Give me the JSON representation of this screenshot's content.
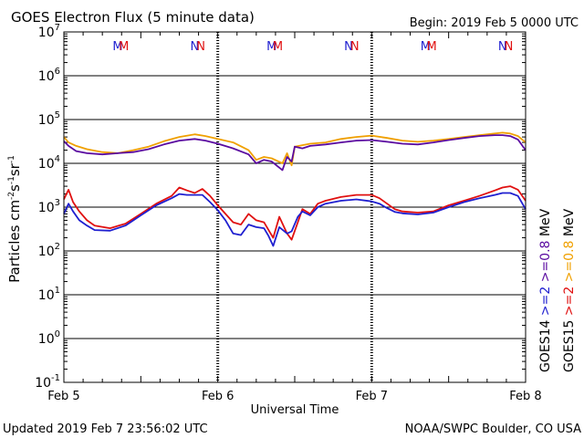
{
  "header": {
    "title": "GOES Electron Flux (5 minute data)",
    "begin": "Begin: 2019 Feb 5 0000 UTC"
  },
  "footer": {
    "updated": "Updated 2019 Feb  7 23:56:02 UTC",
    "credit": "NOAA/SWPC Boulder, CO USA"
  },
  "colors": {
    "goes14_2mev": "#1f1fd0",
    "goes15_2mev": "#e01010",
    "goes14_08mev": "#5a0aa0",
    "goes15_08mev": "#f0a000",
    "axis": "#000000"
  },
  "chart_data": {
    "type": "line",
    "title": "GOES Electron Flux (5 minute data)",
    "xlabel": "Universal Time",
    "ylabel": "Particles cm-2s-1sr-1",
    "ylabel_parts": {
      "base": "Particles cm",
      "exp1": "-2",
      "mid": "s",
      "exp2": "-1",
      "end": "sr",
      "exp3": "-1"
    },
    "y_scale": "log",
    "ylim_exp": [
      -1,
      7
    ],
    "y_ticks": [
      {
        "mant": "10",
        "exp": "7"
      },
      {
        "mant": "10",
        "exp": "6"
      },
      {
        "mant": "10",
        "exp": "5"
      },
      {
        "mant": "10",
        "exp": "4"
      },
      {
        "mant": "10",
        "exp": "3"
      },
      {
        "mant": "10",
        "exp": "2"
      },
      {
        "mant": "10",
        "exp": "1"
      },
      {
        "mant": "10",
        "exp": "0"
      },
      {
        "mant": "10",
        "exp": "-1"
      }
    ],
    "x_ticks": [
      "Feb 5",
      "Feb 6",
      "Feb 7",
      "Feb 8"
    ],
    "xlim_days": [
      0,
      3
    ],
    "threshold": 1000,
    "grid": true,
    "markers": [
      {
        "text": "M",
        "day": 0.35,
        "series": "GOES14"
      },
      {
        "text": "M",
        "day": 0.39,
        "series": "GOES15"
      },
      {
        "text": "N",
        "day": 0.85,
        "series": "GOES14"
      },
      {
        "text": "N",
        "day": 0.89,
        "series": "GOES15"
      },
      {
        "text": "M",
        "day": 1.35,
        "series": "GOES14"
      },
      {
        "text": "M",
        "day": 1.39,
        "series": "GOES15"
      },
      {
        "text": "N",
        "day": 1.85,
        "series": "GOES14"
      },
      {
        "text": "N",
        "day": 1.89,
        "series": "GOES15"
      },
      {
        "text": "M",
        "day": 2.35,
        "series": "GOES14"
      },
      {
        "text": "M",
        "day": 2.39,
        "series": "GOES15"
      },
      {
        "text": "N",
        "day": 2.85,
        "series": "GOES14"
      },
      {
        "text": "N",
        "day": 2.89,
        "series": "GOES15"
      }
    ],
    "legend": [
      {
        "sat": "GOES14",
        "energy": ">=2",
        "energy2": ">=0.8",
        "unit": "MeV",
        "color14": "#1f1fd0",
        "color08": "#5a0aa0"
      },
      {
        "sat": "GOES15",
        "energy": ">=2",
        "energy2": ">=0.8",
        "unit": "MeV",
        "color14": "#e01010",
        "color08": "#f0a000"
      }
    ],
    "series": [
      {
        "name": "GOES15 >=0.8 MeV",
        "color": "#f0a000",
        "x": [
          0,
          0.03,
          0.08,
          0.15,
          0.25,
          0.35,
          0.45,
          0.55,
          0.65,
          0.75,
          0.85,
          0.92,
          1.0,
          1.1,
          1.2,
          1.25,
          1.3,
          1.35,
          1.42,
          1.45,
          1.48,
          1.5,
          1.55,
          1.6,
          1.7,
          1.8,
          1.9,
          2.0,
          2.1,
          2.2,
          2.3,
          2.4,
          2.5,
          2.6,
          2.7,
          2.8,
          2.85,
          2.9,
          2.95,
          3.0
        ],
        "y": [
          40000,
          30000,
          25000,
          21000,
          18000,
          17000,
          20000,
          24000,
          32000,
          40000,
          46000,
          42000,
          36000,
          30000,
          20000,
          12000,
          14000,
          13000,
          10000,
          17000,
          9000,
          24000,
          26000,
          28000,
          30000,
          36000,
          40000,
          43000,
          38000,
          33000,
          31000,
          33000,
          36000,
          40000,
          44000,
          48000,
          50000,
          48000,
          42000,
          30000
        ]
      },
      {
        "name": "GOES14 >=0.8 MeV",
        "color": "#5a0aa0",
        "x": [
          0,
          0.03,
          0.08,
          0.15,
          0.25,
          0.35,
          0.45,
          0.55,
          0.65,
          0.75,
          0.85,
          0.92,
          1.0,
          1.1,
          1.2,
          1.25,
          1.3,
          1.35,
          1.42,
          1.45,
          1.48,
          1.5,
          1.55,
          1.6,
          1.7,
          1.8,
          1.9,
          2.0,
          2.1,
          2.2,
          2.3,
          2.4,
          2.5,
          2.6,
          2.7,
          2.8,
          2.85,
          2.9,
          2.95,
          3.0
        ],
        "y": [
          32000,
          25000,
          19000,
          17000,
          16000,
          17000,
          18000,
          21000,
          27000,
          33000,
          36000,
          33000,
          28000,
          22000,
          16000,
          10000,
          12000,
          11000,
          7000,
          14000,
          11000,
          24000,
          22000,
          25000,
          27000,
          30000,
          33000,
          34000,
          31000,
          28000,
          27000,
          30000,
          34000,
          38000,
          42000,
          44000,
          44000,
          42000,
          35000,
          20000
        ]
      },
      {
        "name": "GOES15 >=2 MeV",
        "color": "#e01010",
        "x": [
          0,
          0.03,
          0.06,
          0.1,
          0.15,
          0.2,
          0.3,
          0.4,
          0.5,
          0.6,
          0.7,
          0.75,
          0.8,
          0.85,
          0.9,
          0.95,
          1.0,
          1.05,
          1.1,
          1.15,
          1.2,
          1.25,
          1.3,
          1.33,
          1.36,
          1.4,
          1.45,
          1.48,
          1.52,
          1.55,
          1.6,
          1.65,
          1.7,
          1.8,
          1.9,
          2.0,
          2.05,
          2.1,
          2.15,
          2.2,
          2.3,
          2.4,
          2.5,
          2.6,
          2.7,
          2.8,
          2.85,
          2.9,
          2.95,
          3.0
        ],
        "y": [
          1500,
          2500,
          1300,
          800,
          500,
          380,
          330,
          420,
          700,
          1200,
          1800,
          2800,
          2400,
          2100,
          2600,
          1800,
          1100,
          700,
          450,
          400,
          700,
          500,
          450,
          300,
          200,
          600,
          250,
          180,
          450,
          900,
          700,
          1200,
          1400,
          1700,
          1900,
          1900,
          1600,
          1200,
          900,
          800,
          750,
          800,
          1100,
          1400,
          1800,
          2400,
          2800,
          3000,
          2500,
          1400
        ]
      },
      {
        "name": "GOES14 >=2 MeV",
        "color": "#1f1fd0",
        "x": [
          0,
          0.03,
          0.06,
          0.1,
          0.15,
          0.2,
          0.3,
          0.4,
          0.5,
          0.6,
          0.7,
          0.75,
          0.8,
          0.85,
          0.9,
          0.95,
          1.0,
          1.05,
          1.1,
          1.15,
          1.2,
          1.25,
          1.3,
          1.33,
          1.36,
          1.4,
          1.45,
          1.48,
          1.52,
          1.55,
          1.6,
          1.65,
          1.7,
          1.8,
          1.9,
          2.0,
          2.05,
          2.1,
          2.15,
          2.2,
          2.3,
          2.4,
          2.5,
          2.6,
          2.7,
          2.8,
          2.85,
          2.9,
          2.95,
          3.0
        ],
        "y": [
          700,
          1200,
          800,
          500,
          380,
          300,
          290,
          380,
          650,
          1100,
          1600,
          2000,
          1900,
          1900,
          1900,
          1300,
          850,
          500,
          250,
          230,
          400,
          350,
          330,
          220,
          130,
          350,
          250,
          280,
          600,
          800,
          650,
          1000,
          1200,
          1400,
          1500,
          1350,
          1200,
          950,
          780,
          720,
          680,
          750,
          1000,
          1300,
          1600,
          1900,
          2100,
          2100,
          1800,
          900
        ]
      }
    ]
  }
}
